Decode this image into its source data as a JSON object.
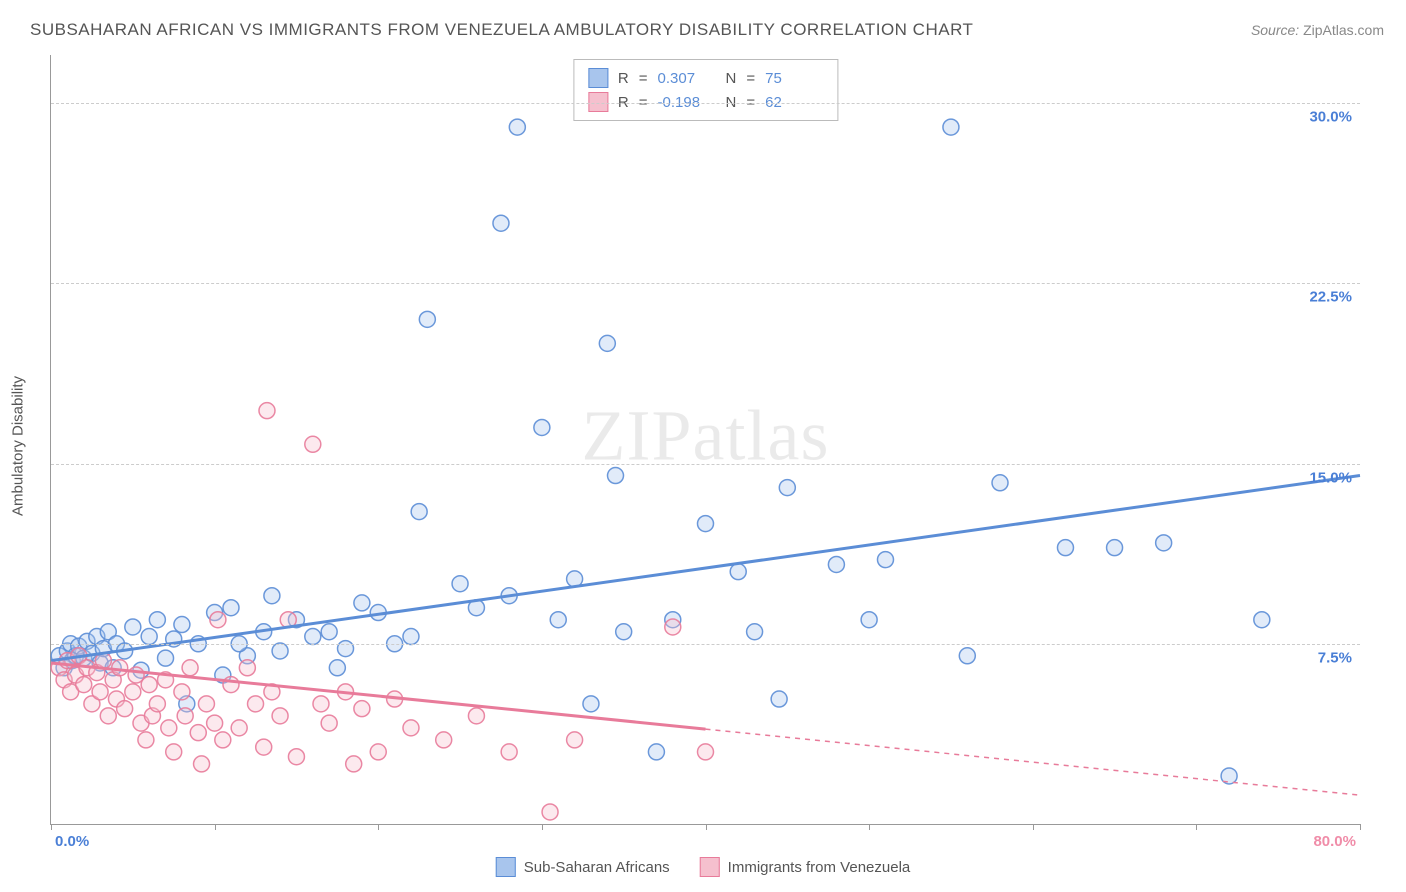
{
  "title": "SUBSAHARAN AFRICAN VS IMMIGRANTS FROM VENEZUELA AMBULATORY DISABILITY CORRELATION CHART",
  "source_label": "Source:",
  "source_value": "ZipAtlas.com",
  "y_axis_title": "Ambulatory Disability",
  "watermark_a": "ZIP",
  "watermark_b": "atlas",
  "chart": {
    "type": "scatter",
    "xlim": [
      0,
      80
    ],
    "ylim": [
      0,
      32
    ],
    "x_ticks": [
      0,
      10,
      20,
      30,
      40,
      50,
      60,
      70,
      80
    ],
    "y_gridlines": [
      7.5,
      15.0,
      22.5,
      30.0
    ],
    "y_tick_labels": [
      "7.5%",
      "15.0%",
      "22.5%",
      "30.0%"
    ],
    "x_origin_label": "0.0%",
    "x_max_label": "80.0%",
    "x_origin_color": "#4a7fd6",
    "x_max_color": "#f08ca8",
    "background_color": "#ffffff",
    "grid_color": "#cccccc",
    "y_label_color": "#4a7fd6",
    "marker_radius": 8,
    "marker_fill_opacity": 0.35,
    "marker_stroke_opacity": 0.9,
    "trend_line_width": 3
  },
  "series": [
    {
      "name": "Sub-Saharan Africans",
      "color_fill": "#a8c5ed",
      "color_stroke": "#5b8dd6",
      "r_value": "0.307",
      "n_value": "75",
      "trend": {
        "x1": 0,
        "y1": 6.8,
        "x2": 80,
        "y2": 14.5,
        "solid_until_x": 80
      },
      "points": [
        [
          0.5,
          7.0
        ],
        [
          0.8,
          6.5
        ],
        [
          1.0,
          7.2
        ],
        [
          1.2,
          7.5
        ],
        [
          1.3,
          6.8
        ],
        [
          1.5,
          7.0
        ],
        [
          1.7,
          7.4
        ],
        [
          2.0,
          6.9
        ],
        [
          2.2,
          7.6
        ],
        [
          2.5,
          7.1
        ],
        [
          2.8,
          7.8
        ],
        [
          3.0,
          6.7
        ],
        [
          3.2,
          7.3
        ],
        [
          3.5,
          8.0
        ],
        [
          3.8,
          6.5
        ],
        [
          4.0,
          7.5
        ],
        [
          4.5,
          7.2
        ],
        [
          5.0,
          8.2
        ],
        [
          5.5,
          6.4
        ],
        [
          6.0,
          7.8
        ],
        [
          6.5,
          8.5
        ],
        [
          7.0,
          6.9
        ],
        [
          7.5,
          7.7
        ],
        [
          8.0,
          8.3
        ],
        [
          8.3,
          5.0
        ],
        [
          9.0,
          7.5
        ],
        [
          10.0,
          8.8
        ],
        [
          10.5,
          6.2
        ],
        [
          11.0,
          9.0
        ],
        [
          12.0,
          7.0
        ],
        [
          13.0,
          8.0
        ],
        [
          13.5,
          9.5
        ],
        [
          14.0,
          7.2
        ],
        [
          15.0,
          8.5
        ],
        [
          16.0,
          7.8
        ],
        [
          17.0,
          8.0
        ],
        [
          18.0,
          7.3
        ],
        [
          19.0,
          9.2
        ],
        [
          20.0,
          8.8
        ],
        [
          21.0,
          7.5
        ],
        [
          22.0,
          7.8
        ],
        [
          22.5,
          13.0
        ],
        [
          23.0,
          21.0
        ],
        [
          25.0,
          10.0
        ],
        [
          26.0,
          9.0
        ],
        [
          27.5,
          25.0
        ],
        [
          28.0,
          9.5
        ],
        [
          28.5,
          29.0
        ],
        [
          30.0,
          16.5
        ],
        [
          31.0,
          8.5
        ],
        [
          32.0,
          10.2
        ],
        [
          33.0,
          5.0
        ],
        [
          34.0,
          20.0
        ],
        [
          34.5,
          14.5
        ],
        [
          35.0,
          8.0
        ],
        [
          37.0,
          3.0
        ],
        [
          38.0,
          8.5
        ],
        [
          40.0,
          12.5
        ],
        [
          42.0,
          10.5
        ],
        [
          43.0,
          8.0
        ],
        [
          44.5,
          5.2
        ],
        [
          45.0,
          14.0
        ],
        [
          48.0,
          10.8
        ],
        [
          50.0,
          8.5
        ],
        [
          51.0,
          11.0
        ],
        [
          55.0,
          29.0
        ],
        [
          56.0,
          7.0
        ],
        [
          58.0,
          14.2
        ],
        [
          62.0,
          11.5
        ],
        [
          65.0,
          11.5
        ],
        [
          68.0,
          11.7
        ],
        [
          72.0,
          2.0
        ],
        [
          74.0,
          8.5
        ],
        [
          11.5,
          7.5
        ],
        [
          17.5,
          6.5
        ]
      ]
    },
    {
      "name": "Immigrants from Venezuela",
      "color_fill": "#f5c0ce",
      "color_stroke": "#e87b9a",
      "r_value": "-0.198",
      "n_value": "62",
      "trend": {
        "x1": 0,
        "y1": 6.7,
        "x2": 80,
        "y2": 1.2,
        "solid_until_x": 40
      },
      "points": [
        [
          0.5,
          6.5
        ],
        [
          0.8,
          6.0
        ],
        [
          1.0,
          6.8
        ],
        [
          1.2,
          5.5
        ],
        [
          1.5,
          6.2
        ],
        [
          1.7,
          7.0
        ],
        [
          2.0,
          5.8
        ],
        [
          2.2,
          6.5
        ],
        [
          2.5,
          5.0
        ],
        [
          2.8,
          6.3
        ],
        [
          3.0,
          5.5
        ],
        [
          3.2,
          6.8
        ],
        [
          3.5,
          4.5
        ],
        [
          3.8,
          6.0
        ],
        [
          4.0,
          5.2
        ],
        [
          4.2,
          6.5
        ],
        [
          4.5,
          4.8
        ],
        [
          5.0,
          5.5
        ],
        [
          5.2,
          6.2
        ],
        [
          5.5,
          4.2
        ],
        [
          5.8,
          3.5
        ],
        [
          6.0,
          5.8
        ],
        [
          6.2,
          4.5
        ],
        [
          6.5,
          5.0
        ],
        [
          7.0,
          6.0
        ],
        [
          7.2,
          4.0
        ],
        [
          7.5,
          3.0
        ],
        [
          8.0,
          5.5
        ],
        [
          8.2,
          4.5
        ],
        [
          8.5,
          6.5
        ],
        [
          9.0,
          3.8
        ],
        [
          9.2,
          2.5
        ],
        [
          9.5,
          5.0
        ],
        [
          10.0,
          4.2
        ],
        [
          10.2,
          8.5
        ],
        [
          10.5,
          3.5
        ],
        [
          11.0,
          5.8
        ],
        [
          11.5,
          4.0
        ],
        [
          12.0,
          6.5
        ],
        [
          12.5,
          5.0
        ],
        [
          13.0,
          3.2
        ],
        [
          13.2,
          17.2
        ],
        [
          13.5,
          5.5
        ],
        [
          14.0,
          4.5
        ],
        [
          14.5,
          8.5
        ],
        [
          15.0,
          2.8
        ],
        [
          16.0,
          15.8
        ],
        [
          16.5,
          5.0
        ],
        [
          17.0,
          4.2
        ],
        [
          18.0,
          5.5
        ],
        [
          18.5,
          2.5
        ],
        [
          19.0,
          4.8
        ],
        [
          20.0,
          3.0
        ],
        [
          21.0,
          5.2
        ],
        [
          22.0,
          4.0
        ],
        [
          24.0,
          3.5
        ],
        [
          26.0,
          4.5
        ],
        [
          28.0,
          3.0
        ],
        [
          30.5,
          0.5
        ],
        [
          32.0,
          3.5
        ],
        [
          38.0,
          8.2
        ],
        [
          40.0,
          3.0
        ]
      ]
    }
  ],
  "stat_legend": {
    "r_label": "R",
    "n_label": "N",
    "eq": "="
  },
  "bottom_legend": {
    "items": [
      {
        "label": "Sub-Saharan Africans",
        "fill": "#a8c5ed",
        "stroke": "#5b8dd6"
      },
      {
        "label": "Immigrants from Venezuela",
        "fill": "#f5c0ce",
        "stroke": "#e87b9a"
      }
    ]
  }
}
